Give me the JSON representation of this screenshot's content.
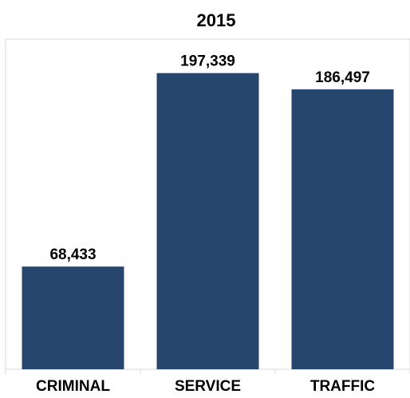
{
  "chart_data": {
    "type": "bar",
    "title": "2015",
    "categories": [
      "CRIMINAL",
      "SERVICE",
      "TRAFFIC"
    ],
    "values": [
      68433,
      197339,
      186497
    ],
    "value_labels": [
      "68,433",
      "197,339",
      "186,497"
    ],
    "xlabel": "",
    "ylabel": "",
    "ylim": [
      0,
      220000
    ],
    "grid": false,
    "legend": "none",
    "colors": {
      "bar": "#27466d",
      "frame": "#d9d9d9",
      "text": "#000000"
    }
  }
}
